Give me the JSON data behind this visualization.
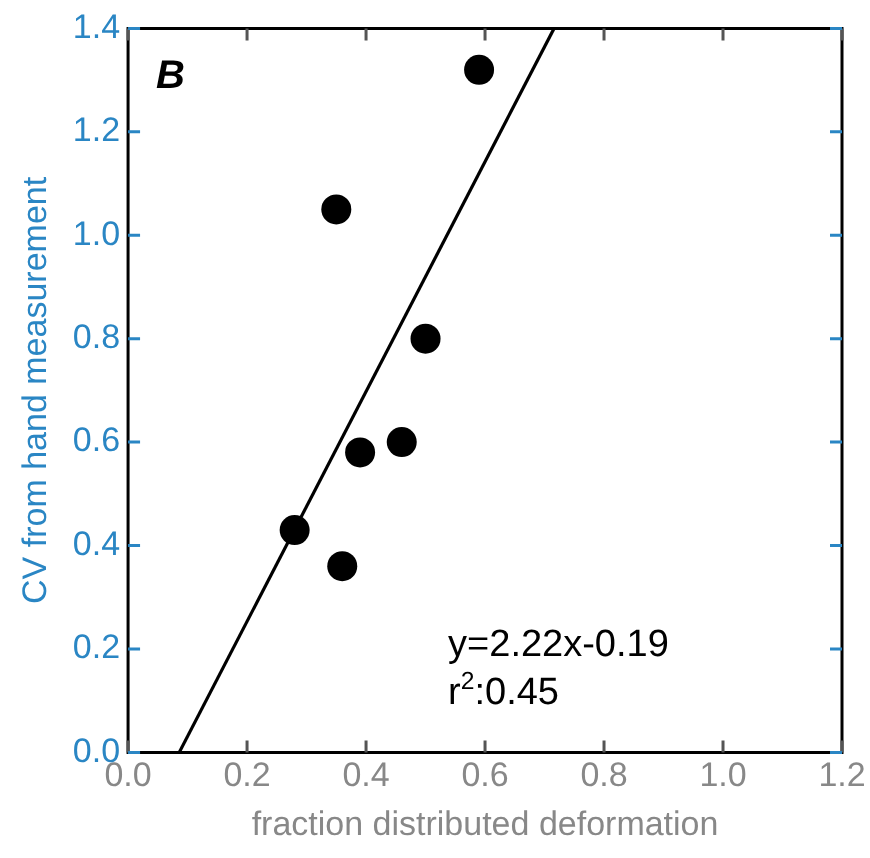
{
  "chart_data": {
    "type": "scatter",
    "xlabel": "fraction distributed deformation",
    "ylabel": "CV from hand measurement",
    "annotations": [
      "B",
      "y=2.22x-0.19",
      "r$^{2}$:0.45"
    ],
    "series": [
      {
        "color": "#000000",
        "x": [
          0.59,
          0.35,
          0.5,
          0.39,
          0.46,
          0.28,
          0.36
        ],
        "values": [
          1.32,
          1.05,
          0.8,
          0.58,
          0.6,
          0.43,
          0.36
        ],
        "marker": "circle"
      },
      {
        "type": "line",
        "color": "#000000",
        "x": [
          0.086,
          0.716
        ],
        "values": [
          0,
          1.4
        ],
        "marker": "none",
        "line_style": "solid"
      }
    ],
    "xlim": [
      0,
      1.2
    ],
    "ylim": [
      0,
      1.4
    ],
    "xticks": [
      {
        "value": 0,
        "label": "0.0"
      },
      0.2,
      0.4,
      0.6,
      0.8,
      {
        "value": 1,
        "label": "1.0"
      },
      1.2
    ],
    "yticks": [
      {
        "value": 0,
        "label": "0.0"
      },
      0.2,
      0.4,
      0.6,
      0.8,
      {
        "value": 1,
        "label": "1.0"
      },
      1.2,
      1.4
    ],
    "grid": false,
    "legend": false
  }
}
